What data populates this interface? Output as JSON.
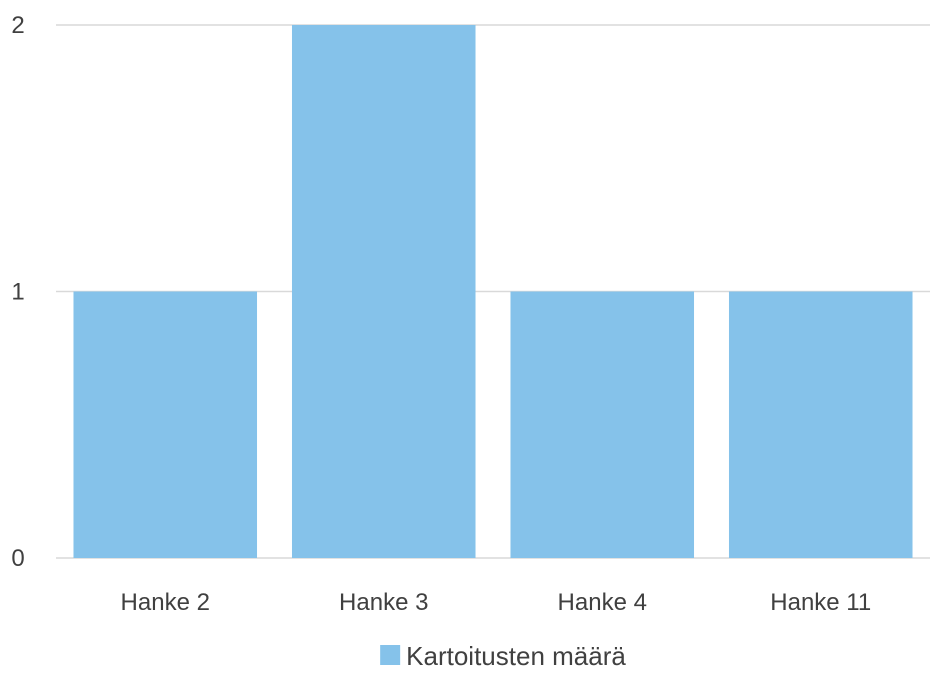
{
  "chart_data": {
    "type": "bar",
    "title": "",
    "xlabel": "",
    "ylabel": "",
    "categories": [
      "Hanke 2",
      "Hanke 3",
      "Hanke 4",
      "Hanke 11"
    ],
    "series": [
      {
        "name": "Kartoitusten määrä",
        "values": [
          1,
          2,
          1,
          1
        ],
        "color": "#85C2EA"
      }
    ],
    "ylim": [
      0,
      2
    ],
    "yticks": [
      "0",
      "1",
      "2"
    ],
    "grid": true,
    "gridline_color": "#D9D9D9",
    "legend_position": "bottom"
  }
}
